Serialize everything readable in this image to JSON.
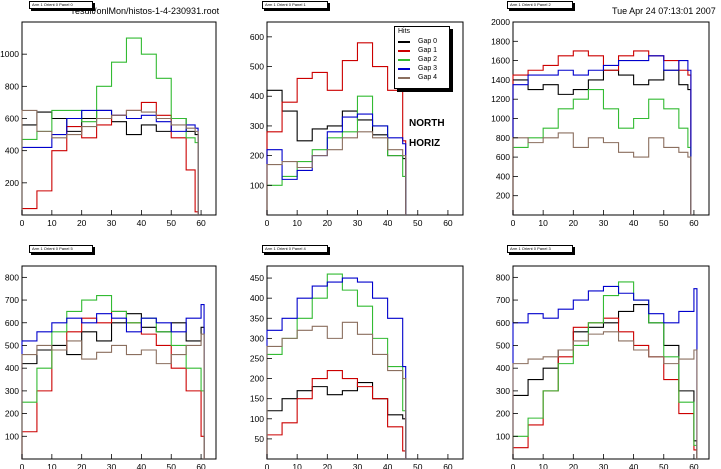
{
  "page": {
    "file_title": "result/onlMon/histos-1-4-230931.root",
    "timestamp": "Tue Apr 24 07:13:01 2007",
    "overlay_line1": "NORTH",
    "overlay_line2": "HORIZ"
  },
  "legend": {
    "title": "Hits",
    "entries": [
      "Gap 0",
      "Gap 1",
      "Gap 2",
      "Gap 3",
      "Gap 4"
    ]
  },
  "series_colors": {
    "Gap 0": "#000000",
    "Gap 1": "#cc0000",
    "Gap 2": "#33bb33",
    "Gap 3": "#0000cc",
    "Gap 4": "#8b6f5f"
  },
  "chart_data": [
    {
      "type": "line",
      "panel_title": "Arm 1 Orient 0 Panel 0",
      "xlim": [
        0,
        65
      ],
      "ylim": [
        0,
        1200
      ],
      "xticks": [
        0,
        10,
        20,
        30,
        40,
        50,
        60
      ],
      "yticks": [
        200,
        400,
        600,
        800,
        1000
      ],
      "grid": false,
      "series": [
        {
          "name": "Gap 0",
          "x": [
            0,
            5,
            10,
            15,
            20,
            25,
            30,
            35,
            40,
            45,
            50,
            55,
            58
          ],
          "y": [
            560,
            640,
            600,
            520,
            600,
            650,
            580,
            500,
            560,
            520,
            600,
            520,
            500
          ]
        },
        {
          "name": "Gap 1",
          "x": [
            0,
            5,
            10,
            15,
            20,
            25,
            30,
            35,
            40,
            45,
            50,
            55,
            58
          ],
          "y": [
            40,
            150,
            400,
            550,
            480,
            560,
            620,
            650,
            700,
            620,
            480,
            280,
            20
          ]
        },
        {
          "name": "Gap 2",
          "x": [
            0,
            5,
            10,
            15,
            20,
            25,
            30,
            35,
            40,
            45,
            50,
            55,
            58
          ],
          "y": [
            470,
            520,
            650,
            650,
            580,
            800,
            950,
            1100,
            1000,
            850,
            600,
            480,
            450
          ]
        },
        {
          "name": "Gap 3",
          "x": [
            0,
            5,
            10,
            15,
            20,
            25,
            30,
            35,
            40,
            45,
            50,
            55,
            58
          ],
          "y": [
            420,
            420,
            500,
            600,
            650,
            650,
            620,
            600,
            620,
            580,
            520,
            560,
            540
          ]
        },
        {
          "name": "Gap 4",
          "x": [
            0,
            5,
            10,
            15,
            20,
            25,
            30,
            35,
            40,
            45,
            50,
            55,
            58
          ],
          "y": [
            650,
            520,
            480,
            500,
            550,
            600,
            620,
            650,
            640,
            600,
            560,
            540,
            520
          ]
        }
      ]
    },
    {
      "type": "line",
      "panel_title": "Arm 1 Orient 0 Panel 1",
      "xlim": [
        0,
        65
      ],
      "ylim": [
        0,
        650
      ],
      "xticks": [
        0,
        10,
        20,
        30,
        40,
        50,
        60
      ],
      "yticks": [
        100,
        200,
        300,
        400,
        500,
        600
      ],
      "grid": false,
      "series": [
        {
          "name": "Gap 0",
          "x": [
            0,
            5,
            10,
            15,
            20,
            25,
            30,
            35,
            40,
            45
          ],
          "y": [
            420,
            350,
            250,
            290,
            300,
            350,
            320,
            270,
            200,
            190
          ]
        },
        {
          "name": "Gap 1",
          "x": [
            0,
            5,
            10,
            15,
            20,
            25,
            30,
            35,
            40,
            45
          ],
          "y": [
            280,
            380,
            460,
            480,
            420,
            520,
            580,
            500,
            420,
            250
          ]
        },
        {
          "name": "Gap 2",
          "x": [
            0,
            5,
            10,
            15,
            20,
            25,
            30,
            35,
            40,
            45
          ],
          "y": [
            100,
            130,
            180,
            220,
            260,
            280,
            400,
            300,
            200,
            130
          ]
        },
        {
          "name": "Gap 3",
          "x": [
            0,
            5,
            10,
            15,
            20,
            25,
            30,
            35,
            40,
            45
          ],
          "y": [
            220,
            120,
            150,
            200,
            280,
            330,
            340,
            300,
            260,
            240
          ]
        },
        {
          "name": "Gap 4",
          "x": [
            0,
            5,
            10,
            15,
            20,
            25,
            30,
            35,
            40,
            45
          ],
          "y": [
            170,
            180,
            160,
            200,
            220,
            260,
            280,
            260,
            220,
            200
          ]
        }
      ]
    },
    {
      "type": "line",
      "panel_title": "Arm 1 Orient 0 Panel 2",
      "xlim": [
        0,
        65
      ],
      "ylim": [
        0,
        2000
      ],
      "xticks": [
        0,
        10,
        20,
        30,
        40,
        50,
        60
      ],
      "yticks": [
        200,
        400,
        600,
        800,
        1000,
        1200,
        1400,
        1600,
        1800,
        2000
      ],
      "grid": false,
      "series": [
        {
          "name": "Gap 0",
          "x": [
            0,
            5,
            10,
            15,
            20,
            25,
            30,
            35,
            40,
            45,
            50,
            55,
            58
          ],
          "y": [
            1400,
            1300,
            1350,
            1250,
            1300,
            1400,
            1500,
            1450,
            1350,
            1400,
            1500,
            1350,
            1300
          ]
        },
        {
          "name": "Gap 1",
          "x": [
            0,
            5,
            10,
            15,
            20,
            25,
            30,
            35,
            40,
            45,
            50,
            55,
            58
          ],
          "y": [
            1450,
            1500,
            1550,
            1650,
            1700,
            1650,
            1500,
            1650,
            1700,
            1650,
            1600,
            1500,
            1450
          ]
        },
        {
          "name": "Gap 2",
          "x": [
            0,
            5,
            10,
            15,
            20,
            25,
            30,
            35,
            40,
            45,
            50,
            55,
            58
          ],
          "y": [
            700,
            800,
            900,
            1100,
            1200,
            1300,
            1100,
            900,
            1000,
            1200,
            1100,
            900,
            700
          ]
        },
        {
          "name": "Gap 3",
          "x": [
            0,
            5,
            10,
            15,
            20,
            25,
            30,
            35,
            40,
            45,
            50,
            55,
            58
          ],
          "y": [
            1350,
            1450,
            1450,
            1500,
            1450,
            1500,
            1550,
            1600,
            1600,
            1650,
            1500,
            1600,
            1500
          ]
        },
        {
          "name": "Gap 4",
          "x": [
            0,
            5,
            10,
            15,
            20,
            25,
            30,
            35,
            40,
            45,
            50,
            55,
            58
          ],
          "y": [
            800,
            750,
            800,
            850,
            700,
            800,
            750,
            650,
            600,
            800,
            700,
            650,
            600
          ]
        }
      ]
    },
    {
      "type": "line",
      "panel_title": "Arm 1 Orient 0 Panel 5",
      "xlim": [
        0,
        65
      ],
      "ylim": [
        0,
        850
      ],
      "xticks": [
        0,
        10,
        20,
        30,
        40,
        50,
        60
      ],
      "yticks": [
        100,
        200,
        300,
        400,
        500,
        600,
        700,
        800
      ],
      "grid": false,
      "series": [
        {
          "name": "Gap 0",
          "x": [
            0,
            5,
            10,
            15,
            20,
            25,
            30,
            35,
            40,
            45,
            50,
            55,
            60
          ],
          "y": [
            420,
            480,
            500,
            460,
            560,
            520,
            600,
            640,
            580,
            560,
            600,
            520,
            580
          ]
        },
        {
          "name": "Gap 1",
          "x": [
            0,
            5,
            10,
            15,
            20,
            25,
            30,
            35,
            40,
            45,
            50,
            55,
            60
          ],
          "y": [
            120,
            300,
            480,
            560,
            620,
            600,
            650,
            600,
            550,
            500,
            400,
            300,
            100
          ]
        },
        {
          "name": "Gap 2",
          "x": [
            0,
            5,
            10,
            15,
            20,
            25,
            30,
            35,
            40,
            45,
            50,
            55,
            60
          ],
          "y": [
            250,
            400,
            560,
            650,
            700,
            720,
            650,
            600,
            620,
            560,
            500,
            400,
            300
          ]
        },
        {
          "name": "Gap 3",
          "x": [
            0,
            5,
            10,
            15,
            20,
            25,
            30,
            35,
            40,
            45,
            50,
            55,
            60
          ],
          "y": [
            520,
            560,
            600,
            620,
            600,
            640,
            620,
            560,
            620,
            600,
            560,
            620,
            680
          ]
        },
        {
          "name": "Gap 4",
          "x": [
            0,
            5,
            10,
            15,
            20,
            25,
            30,
            35,
            40,
            45,
            50,
            55,
            60
          ],
          "y": [
            460,
            500,
            480,
            520,
            440,
            470,
            500,
            460,
            480,
            420,
            460,
            500,
            550
          ]
        }
      ]
    },
    {
      "type": "line",
      "panel_title": "Arm 1 Orient 0 Panel 4",
      "xlim": [
        0,
        65
      ],
      "ylim": [
        0,
        480
      ],
      "xticks": [
        0,
        10,
        20,
        30,
        40,
        50,
        60
      ],
      "yticks": [
        50,
        100,
        150,
        200,
        250,
        300,
        350,
        400,
        450
      ],
      "grid": false,
      "series": [
        {
          "name": "Gap 0",
          "x": [
            0,
            5,
            10,
            15,
            20,
            25,
            30,
            35,
            40,
            45
          ],
          "y": [
            120,
            150,
            170,
            180,
            160,
            170,
            190,
            150,
            110,
            100
          ]
        },
        {
          "name": "Gap 1",
          "x": [
            0,
            5,
            10,
            15,
            20,
            25,
            30,
            35,
            40,
            45
          ],
          "y": [
            60,
            90,
            150,
            200,
            220,
            200,
            180,
            150,
            80,
            20
          ]
        },
        {
          "name": "Gap 2",
          "x": [
            0,
            5,
            10,
            15,
            20,
            25,
            30,
            35,
            40,
            45
          ],
          "y": [
            260,
            300,
            350,
            400,
            460,
            420,
            380,
            300,
            230,
            120
          ]
        },
        {
          "name": "Gap 3",
          "x": [
            0,
            5,
            10,
            15,
            20,
            25,
            30,
            35,
            40,
            45
          ],
          "y": [
            320,
            350,
            400,
            430,
            440,
            450,
            440,
            400,
            350,
            230
          ]
        },
        {
          "name": "Gap 4",
          "x": [
            0,
            5,
            10,
            15,
            20,
            25,
            30,
            35,
            40,
            45
          ],
          "y": [
            280,
            300,
            320,
            330,
            300,
            340,
            310,
            260,
            220,
            200
          ]
        }
      ]
    },
    {
      "type": "line",
      "panel_title": "Arm 1 Orient 0 Panel 3",
      "xlim": [
        0,
        65
      ],
      "ylim": [
        0,
        850
      ],
      "xticks": [
        0,
        10,
        20,
        30,
        40,
        50,
        60
      ],
      "yticks": [
        100,
        200,
        300,
        400,
        500,
        600,
        700,
        800
      ],
      "grid": false,
      "series": [
        {
          "name": "Gap 0",
          "x": [
            0,
            5,
            10,
            15,
            20,
            25,
            30,
            35,
            40,
            45,
            50,
            55,
            60
          ],
          "y": [
            280,
            350,
            400,
            480,
            560,
            580,
            600,
            650,
            680,
            600,
            500,
            300,
            80
          ]
        },
        {
          "name": "Gap 1",
          "x": [
            0,
            5,
            10,
            15,
            20,
            25,
            30,
            35,
            40,
            45,
            50,
            55,
            60
          ],
          "y": [
            50,
            150,
            300,
            450,
            580,
            600,
            620,
            560,
            500,
            450,
            350,
            200,
            40
          ]
        },
        {
          "name": "Gap 2",
          "x": [
            0,
            5,
            10,
            15,
            20,
            25,
            30,
            35,
            40,
            45,
            50,
            55,
            60
          ],
          "y": [
            100,
            180,
            300,
            420,
            500,
            600,
            720,
            780,
            700,
            600,
            450,
            250,
            60
          ]
        },
        {
          "name": "Gap 3",
          "x": [
            0,
            5,
            10,
            15,
            20,
            25,
            30,
            35,
            40,
            45,
            50,
            55,
            60
          ],
          "y": [
            600,
            640,
            620,
            660,
            700,
            740,
            760,
            730,
            700,
            640,
            600,
            650,
            750
          ]
        },
        {
          "name": "Gap 4",
          "x": [
            0,
            5,
            10,
            15,
            20,
            25,
            30,
            35,
            40,
            45,
            50,
            55,
            60
          ],
          "y": [
            420,
            440,
            450,
            480,
            520,
            550,
            560,
            520,
            480,
            450,
            420,
            440,
            480
          ]
        }
      ]
    }
  ]
}
